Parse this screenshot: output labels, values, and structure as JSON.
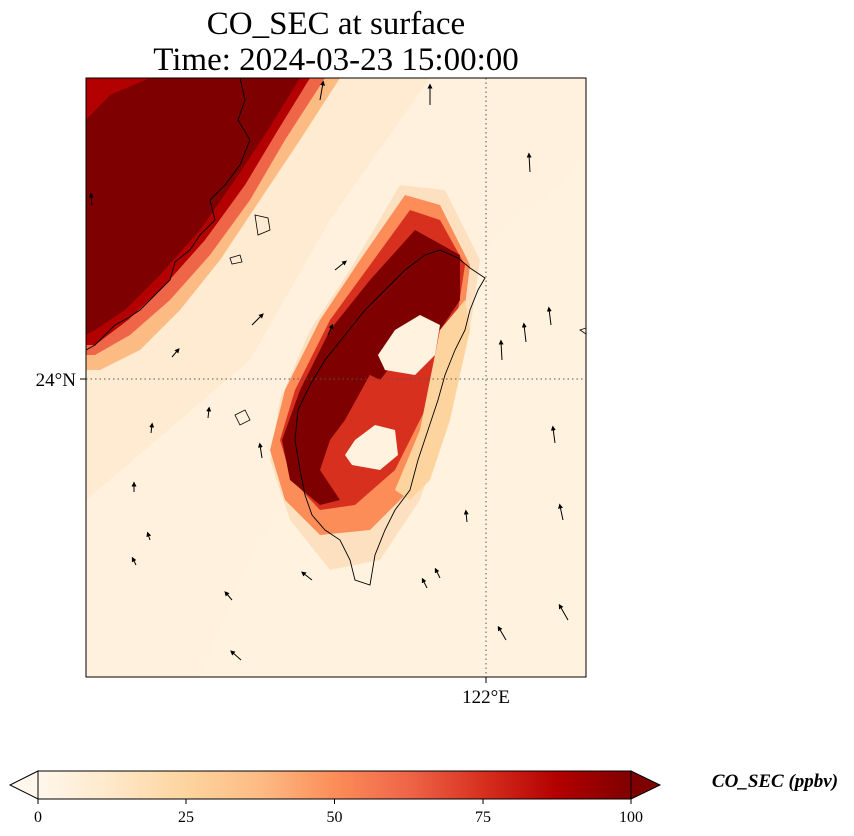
{
  "title": {
    "line1": "CO_SEC at surface",
    "line2": "Time: 2024-03-23 15:00:00"
  },
  "map": {
    "lon_label": "122°E",
    "lat_label": "24°N",
    "gridlines": "dotted",
    "field_colormap": "OrRd"
  },
  "colorbar": {
    "label": "CO_SEC (ppbv)",
    "min": 0,
    "max": 100,
    "ticks": [
      "0",
      "25",
      "50",
      "75",
      "100"
    ],
    "extend": "both",
    "colors": [
      "#fff7ec",
      "#fee8c8",
      "#fdd49e",
      "#fdbb84",
      "#fc8d59",
      "#ef6548",
      "#d7301f",
      "#b30000",
      "#7f0000"
    ]
  },
  "colors": {
    "background": "#fff3e0",
    "high": "#7f0000",
    "coast": "#000000"
  }
}
